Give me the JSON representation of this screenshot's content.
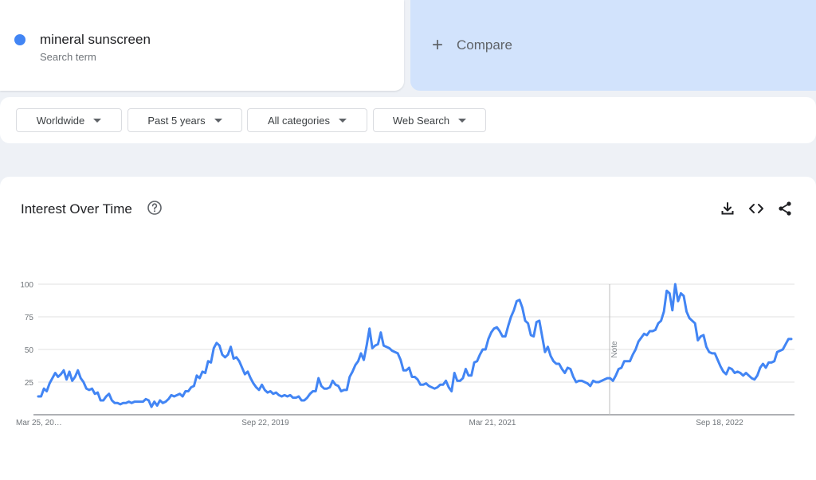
{
  "search_term": {
    "name": "mineral sunscreen",
    "subtitle": "Search term",
    "color": "#4285f4"
  },
  "compare": {
    "label": "Compare",
    "icon": "plus-icon"
  },
  "filters": [
    {
      "label": "Worldwide"
    },
    {
      "label": "Past 5 years"
    },
    {
      "label": "All categories"
    },
    {
      "label": "Web Search"
    }
  ],
  "interest_panel": {
    "title": "Interest Over Time",
    "icons": [
      "help-icon",
      "download-icon",
      "embed-code-icon",
      "share-icon"
    ]
  },
  "chart_data": {
    "type": "line",
    "series": [
      {
        "values": [
          14,
          14,
          20,
          18,
          24,
          28,
          32,
          29,
          31,
          34,
          27,
          33,
          26,
          29,
          34,
          28,
          25,
          20,
          19,
          20,
          16,
          17,
          11,
          11,
          14,
          16,
          11,
          9,
          9,
          8,
          9,
          9,
          10,
          9,
          10,
          10,
          10,
          10,
          12,
          11,
          6,
          10,
          7,
          11,
          9,
          10,
          12,
          15,
          14,
          15,
          16,
          14,
          18,
          18,
          21,
          22,
          30,
          28,
          33,
          32,
          41,
          40,
          51,
          55,
          53,
          46,
          44,
          46,
          52,
          43,
          44,
          41,
          36,
          31,
          33,
          28,
          24,
          21,
          19,
          23,
          19,
          17,
          18,
          16,
          17,
          15,
          14,
          15,
          14,
          15,
          13,
          13,
          14,
          11,
          11,
          13,
          16,
          18,
          18,
          28,
          22,
          20,
          20,
          21,
          26,
          23,
          22,
          18,
          19,
          19,
          29,
          33,
          38,
          41,
          47,
          42,
          53,
          66,
          51,
          53,
          54,
          63,
          53,
          52,
          51,
          49,
          48,
          47,
          42,
          34,
          34,
          36,
          29,
          29,
          27,
          23,
          23,
          24,
          22,
          21,
          20,
          21,
          23,
          23,
          26,
          21,
          18,
          32,
          26,
          26,
          28,
          35,
          30,
          30,
          40,
          41,
          46,
          50,
          50,
          58,
          63,
          66,
          67,
          64,
          60,
          60,
          68,
          75,
          80,
          87,
          88,
          82,
          72,
          70,
          61,
          60,
          71,
          72,
          60,
          48,
          52,
          45,
          41,
          39,
          39,
          35,
          32,
          36,
          35,
          29,
          25,
          26,
          26,
          25,
          24,
          22,
          26,
          25,
          25,
          26,
          27,
          28,
          28,
          26,
          30,
          35,
          36,
          41,
          41,
          41,
          46,
          50,
          56,
          59,
          62,
          61,
          64,
          64,
          65,
          70,
          72,
          79,
          95,
          93,
          80,
          100,
          87,
          93,
          91,
          79,
          74,
          72,
          70,
          57,
          60,
          61,
          52,
          48,
          47,
          47,
          42,
          37,
          33,
          31,
          36,
          35,
          32,
          33,
          32,
          30,
          32,
          30,
          28,
          27,
          30,
          36,
          39,
          36,
          40,
          40,
          41,
          48,
          49,
          50,
          54,
          58,
          58
        ]
      }
    ],
    "x_tick_labels": [
      "Mar 25, 20…",
      "Sep 22, 2019",
      "Mar 21, 2021",
      "Sep 18, 2022"
    ],
    "y_ticks": [
      25,
      50,
      75,
      100
    ],
    "ylim": [
      0,
      100
    ],
    "grid": true,
    "annotation": "Note",
    "line_color": "#4285f4"
  }
}
